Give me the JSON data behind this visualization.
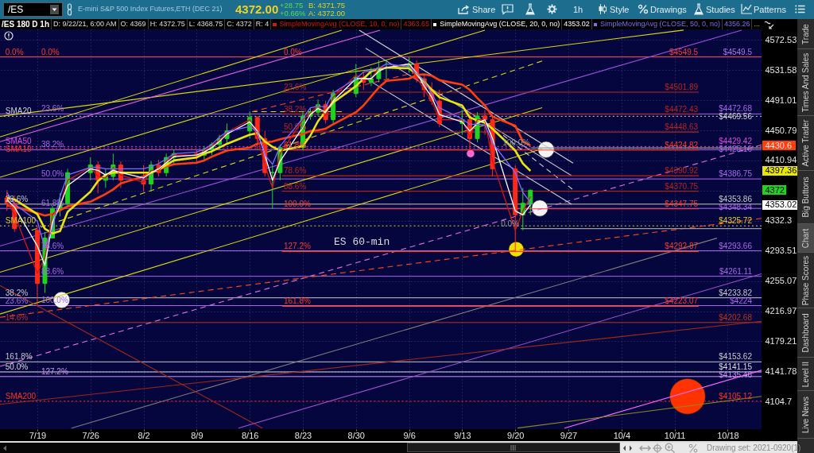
{
  "chart_data": {
    "type": "candlestick",
    "title": "/ES 180 D 1h",
    "log": "y",
    "grid": true,
    "legend": "top",
    "xlim": [
      "2021-07-14T02:00",
      "2021-10-22T11:00"
    ],
    "ylim": [
      4071,
      4587
    ],
    "xticks": [
      {
        "value": "2021-07-19",
        "label": "7/19"
      },
      {
        "value": "2021-07-26",
        "label": "7/26"
      },
      {
        "value": "2021-08-02",
        "label": "8/2"
      },
      {
        "value": "2021-08-09",
        "label": "8/9"
      },
      {
        "value": "2021-08-16",
        "label": "8/16"
      },
      {
        "value": "2021-08-23",
        "label": "8/23"
      },
      {
        "value": "2021-08-30",
        "label": "8/30"
      },
      {
        "value": "2021-09-06",
        "label": "9/6"
      },
      {
        "value": "2021-09-13",
        "label": "9/13"
      },
      {
        "value": "2021-09-20",
        "label": "9/20"
      },
      {
        "value": "2021-09-27",
        "label": "9/27"
      },
      {
        "value": "2021-10-04",
        "label": "10/4"
      },
      {
        "value": "2021-10-11",
        "label": "10/11"
      },
      {
        "value": "2021-10-18",
        "label": "10/18"
      }
    ],
    "yticks": [
      4572.53,
      4531.58,
      4491.01,
      4450.79,
      4430.6,
      4410.94,
      4397.36,
      4372,
      {
        "value": 4371.44,
        "label": null
      },
      4353.02,
      4332.3,
      4293.51,
      4255.07,
      4216.97,
      4179.21,
      4141.78,
      4104.7
    ],
    "x": [
      "2021-07-15",
      "2021-07-16",
      "2021-07-19",
      "2021-07-20",
      "2021-07-21",
      "2021-07-22",
      "2021-07-23",
      "2021-07-26",
      "2021-07-27",
      "2021-07-28",
      "2021-07-29",
      "2021-07-30",
      "2021-08-02",
      "2021-08-03",
      "2021-08-04",
      "2021-08-05",
      "2021-08-06",
      "2021-08-09",
      "2021-08-10",
      "2021-08-11",
      "2021-08-12",
      "2021-08-13",
      "2021-08-16",
      "2021-08-17",
      "2021-08-18",
      "2021-08-19",
      "2021-08-20",
      "2021-08-23",
      "2021-08-24",
      "2021-08-25",
      "2021-08-26",
      "2021-08-27",
      "2021-08-30",
      "2021-08-31",
      "2021-09-01",
      "2021-09-02",
      "2021-09-03",
      "2021-09-06",
      "2021-09-07",
      "2021-09-08",
      "2021-09-09",
      "2021-09-10",
      "2021-09-13",
      "2021-09-14",
      "2021-09-15",
      "2021-09-16",
      "2021-09-17",
      "2021-09-20",
      "2021-09-21",
      "2021-09-22"
    ],
    "ohlc": [
      [
        4362,
        4372,
        4345,
        4355
      ],
      [
        4355,
        4365,
        4318,
        4322
      ],
      [
        4320,
        4325,
        4224,
        4252
      ],
      [
        4252,
        4318,
        4240,
        4310
      ],
      [
        4310,
        4352,
        4310,
        4348
      ],
      [
        4348,
        4368,
        4338,
        4355
      ],
      [
        4355,
        4400,
        4350,
        4395
      ],
      [
        4395,
        4415,
        4385,
        4405
      ],
      [
        4405,
        4410,
        4368,
        4385
      ],
      [
        4385,
        4400,
        4375,
        4390
      ],
      [
        4390,
        4420,
        4385,
        4405
      ],
      [
        4405,
        4410,
        4375,
        4385
      ],
      [
        4385,
        4405,
        4370,
        4380
      ],
      [
        4380,
        4410,
        4370,
        4405
      ],
      [
        4405,
        4412,
        4390,
        4395
      ],
      [
        4395,
        4420,
        4390,
        4415
      ],
      [
        4415,
        4425,
        4405,
        4420
      ],
      [
        4420,
        4425,
        4408,
        4418
      ],
      [
        4418,
        4430,
        4410,
        4425
      ],
      [
        4425,
        4435,
        4418,
        4432
      ],
      [
        4432,
        4445,
        4425,
        4440
      ],
      [
        4440,
        4460,
        4432,
        4450
      ],
      [
        4450,
        4476,
        4440,
        4468
      ],
      [
        4468,
        4470,
        4425,
        4440
      ],
      [
        4440,
        4450,
        4390,
        4395
      ],
      [
        4395,
        4405,
        4347.75,
        4395
      ],
      [
        4395,
        4432,
        4385,
        4428
      ],
      [
        4428,
        4475,
        4425,
        4470
      ],
      [
        4470,
        4480,
        4465,
        4475
      ],
      [
        4475,
        4492,
        4470,
        4485
      ],
      [
        4485,
        4490,
        4460,
        4465
      ],
      [
        4465,
        4505,
        4460,
        4500
      ],
      [
        4500,
        4540,
        4495,
        4522
      ],
      [
        4522,
        4530,
        4505,
        4515
      ],
      [
        4515,
        4535,
        4510,
        4520
      ],
      [
        4520,
        4545,
        4515,
        4535
      ],
      [
        4535,
        4545,
        4520,
        4535
      ],
      [
        4535,
        4549.5,
        4528,
        4540
      ],
      [
        4540,
        4545,
        4515,
        4520
      ],
      [
        4520,
        4525,
        4495,
        4505
      ],
      [
        4505,
        4515,
        4485,
        4490
      ],
      [
        4490,
        4505,
        4455,
        4460
      ],
      [
        4460,
        4478,
        4445,
        4465
      ],
      [
        4465,
        4475,
        4425,
        4440
      ],
      [
        4440,
        4475,
        4435,
        4470
      ],
      [
        4470,
        4478,
        4445,
        4465
      ],
      [
        4465,
        4470,
        4390,
        4400
      ],
      [
        4400,
        4405,
        4293,
        4340
      ],
      [
        4340,
        4375,
        4320,
        4355
      ],
      [
        4355,
        4372.75,
        4340,
        4372
      ]
    ],
    "colors": [
      "#ff2a1a",
      "#ff2a1a",
      "#ff2a1a",
      "#1fd31f",
      "#1fd31f",
      "#1fd31f",
      "#1fd31f",
      "#1fd31f",
      "#ff2a1a",
      "#1fd31f",
      "#1fd31f",
      "#ff2a1a",
      "#ff2a1a",
      "#1fd31f",
      "#ff2a1a",
      "#1fd31f",
      "#1fd31f",
      "#ff2a1a",
      "#1fd31f",
      "#1fd31f",
      "#1fd31f",
      "#1fd31f",
      "#1fd31f",
      "#ff2a1a",
      "#ff2a1a",
      "#1fd31f",
      "#1fd31f",
      "#1fd31f",
      "#1fd31f",
      "#1fd31f",
      "#ff2a1a",
      "#1fd31f",
      "#1fd31f",
      "#ff2a1a",
      "#1fd31f",
      "#1fd31f",
      "#1fd31f",
      "#1fd31f",
      "#ff2a1a",
      "#ff2a1a",
      "#ff2a1a",
      "#ff2a1a",
      "#1fd31f",
      "#ff2a1a",
      "#1fd31f",
      "#ff2a1a",
      "#ff2a1a",
      "#ff2a1a",
      "#1fd31f",
      "#1fd31f"
    ],
    "series": [
      {
        "type": "line",
        "color": "#d8d810",
        "x": [
          "2021-07-14T02:00",
          "2021-08-28T03:00"
        ],
        "values": [
          4442.1,
          4586.0
        ]
      },
      {
        "type": "line",
        "color": "#d8d810",
        "x": [
          "2021-07-14T02:00",
          "2021-10-12T04:30"
        ],
        "values": [
          4469.5,
          4586.0
        ]
      },
      {
        "type": "line",
        "color": "#d8d810",
        "x": [
          "2021-07-14T02:00",
          "2021-09-16T00:00"
        ],
        "values": [
          4388.9,
          4586.0
        ]
      },
      {
        "type": "line",
        "color": "#e060e0",
        "x": [
          "2021-07-14T02:00",
          "2021-09-02T04:00"
        ],
        "values": [
          4435.8,
          4586.0
        ]
      },
      {
        "type": "line",
        "color": "#d8d810",
        "x": [
          "2021-07-14T02:00",
          "2021-09-23T13:00"
        ],
        "values": [
          4266.3,
          4481.1
        ]
      },
      {
        "type": "line",
        "color": "#d8d810",
        "x": [
          "2021-07-14T02:00",
          "2021-09-23T13:00"
        ],
        "values": [
          4213.3,
          4426.4
        ]
      },
      {
        "type": "line",
        "color": "#d8d810",
        "line_style": "dashed",
        "x": [
          "2021-07-18T06:00",
          "2021-09-23T13:00"
        ],
        "values": [
          4320.1,
          4544.0
        ]
      },
      {
        "type": "line",
        "color": "#d8d810",
        "line_style": "dashed",
        "x": [
          "2021-08-16T07:00",
          "2021-08-28T03:00"
        ],
        "values": [
          4475.8,
          4475.8
        ]
      },
      {
        "type": "line",
        "color": "#ff4020",
        "line_style": "dashed",
        "x": [
          "2021-08-16T07:00",
          "2021-09-07T02:00"
        ],
        "values": [
          4475.8,
          4529.0
        ]
      },
      {
        "type": "line",
        "color": "#e070e0",
        "line_style": "dashed",
        "x": [
          "2021-07-14T02:00",
          "2021-10-22T11:00"
        ],
        "values": [
          4148.0,
          4431.6
        ]
      },
      {
        "type": "line",
        "color": "#ff4a1a",
        "line_style": "dashed",
        "x": [
          "2021-07-14T02:00",
          "2021-10-22T11:00"
        ],
        "values": [
          4209.2,
          4335.4
        ]
      },
      {
        "type": "line",
        "color": "#a050d0",
        "x": [
          "2021-08-14T12:00",
          "2021-10-22T11:00"
        ],
        "values": [
          4072.3,
          4264.3
        ]
      },
      {
        "type": "line",
        "color": "#ff66ff",
        "x": [
          "2021-09-26T11:30",
          "2021-10-22T11:00"
        ],
        "values": [
          4072.3,
          4143.2
        ]
      },
      {
        "type": "line",
        "color": "#9a50d8",
        "x": [
          "2021-07-14T02:00",
          "2021-10-19T20:00"
        ],
        "values": [
          4299.8,
          4586.0
        ]
      },
      {
        "type": "line",
        "color": "#cfcfcf",
        "x": [
          "2021-08-30T10:30",
          "2021-09-27T15:00"
        ],
        "values": [
          4586.0,
          4407.6
        ]
      },
      {
        "type": "line",
        "color": "#bdbdbd",
        "x": [
          "2021-08-31T07:00",
          "2021-09-27T10:00"
        ],
        "values": [
          4561.2,
          4391.0
        ]
      },
      {
        "type": "line",
        "color": "#cfcfcf",
        "line_style": "dashed",
        "x": [
          "2021-09-18T10:00",
          "2021-09-27T12:30"
        ],
        "values": [
          4444.2,
          4373.4
        ]
      },
      {
        "type": "line",
        "color": "#cfcfcf",
        "x": [
          "2021-08-31T07:00",
          "2021-09-27T10:00"
        ],
        "values": [
          4520.4,
          4353.8
        ]
      },
      {
        "type": "line",
        "color": "#7c7c7c",
        "x": [
          "2021-07-23T12:00",
          "2021-10-16T14:00"
        ],
        "values": [
          4072.3,
          4309.9
        ]
      },
      {
        "type": "line",
        "color": "#a02818",
        "x": [
          "2021-07-14T02:00",
          "2021-10-22T11:00"
        ],
        "values": [
          4101.3,
          4204.3
        ]
      },
      {
        "type": "line",
        "color": "#8a8a20",
        "x": [
          "2021-09-20T07:00",
          "2021-10-22T11:00"
        ],
        "values": [
          4072.3,
          4111.0
        ]
      },
      {
        "type": "line",
        "color": "#a02818",
        "x": [
          "2021-07-14T02:00",
          "2021-08-17T16:00"
        ],
        "values": [
          4249.3,
          4072.3
        ]
      },
      {
        "type": "line",
        "color": "#9a9a9a",
        "x": [
          "2021-09-22T02:00",
          "2021-10-22T11:00"
        ],
        "values": [
          4427.5,
          4427.5
        ]
      },
      {
        "type": "line",
        "color": "#9a9a9a",
        "x": [
          "2021-09-20T17:00",
          "2021-10-22T11:00"
        ],
        "values": [
          4322.2,
          4322.2
        ]
      },
      {
        "type": "line",
        "color": "#b8241a",
        "x": [
          "2021-08-20T06:30",
          "2021-10-14T04:30"
        ],
        "values": [
          4501.89,
          4501.89
        ]
      },
      {
        "type": "line",
        "color": "#b8241a",
        "x": [
          "2021-08-20T06:30",
          "2021-10-14T04:30"
        ],
        "values": [
          4472.43,
          4472.43
        ]
      },
      {
        "type": "line",
        "color": "#b8241a",
        "x": [
          "2021-08-20T06:30",
          "2021-10-14T04:30"
        ],
        "values": [
          4448.63,
          4448.63
        ]
      },
      {
        "type": "line",
        "color": "#ff3a2a",
        "x": [
          "2021-08-20T06:30",
          "2021-10-14T04:30"
        ],
        "values": [
          4424.82,
          4424.82
        ]
      },
      {
        "type": "line",
        "color": "#b8241a",
        "x": [
          "2021-08-20T06:30",
          "2021-10-14T04:30"
        ],
        "values": [
          4390.92,
          4390.92
        ]
      },
      {
        "type": "line",
        "color": "#b8241a",
        "x": [
          "2021-08-20T06:30",
          "2021-10-14T04:30"
        ],
        "values": [
          4370.75,
          4370.75
        ]
      },
      {
        "type": "line",
        "color": "#ff3a2a",
        "x": [
          "2021-08-20T06:30",
          "2021-10-14T04:30"
        ],
        "values": [
          4347.75,
          4347.75
        ]
      },
      {
        "type": "line",
        "color": "#ff3a2a",
        "x": [
          "2021-08-20T06:30",
          "2021-10-14T04:30"
        ],
        "values": [
          4292.87,
          4292.87
        ]
      },
      {
        "type": "line",
        "color": "#ff3a2a",
        "x": [
          "2021-08-20T06:30",
          "2021-10-14T04:30"
        ],
        "values": [
          4223.07,
          4223.07
        ]
      },
      {
        "type": "line",
        "color": "#ff3d0d",
        "values": [
          4352,
          4351,
          4342,
          4339,
          4341,
          4346,
          4351,
          4357,
          4362,
          4367,
          4373,
          4381,
          4390,
          4395,
          4399,
          4403,
          4406,
          4408,
          4411,
          4416,
          4420,
          4424,
          4428,
          4433,
          4435,
          4436,
          4439,
          4446,
          4450,
          4451,
          4453,
          4459,
          4475,
          4484,
          4496,
          4508,
          4517,
          4520,
          4525,
          4526,
          4524,
          4518,
          4512,
          4505,
          4494,
          4484,
          4469,
          4457,
          4436,
          4430.6
        ]
      },
      {
        "type": "line",
        "color": "#e8e410",
        "values": [
          4362,
          4360,
          4341,
          4322,
          4316,
          4319,
          4344,
          4370,
          4384,
          4392,
          4395,
          4395,
          4395,
          4395,
          4399,
          4405,
          4411,
          4415,
          4420,
          4423,
          4428,
          4433,
          4445,
          4447,
          4436,
          4429,
          4424,
          4430,
          4444,
          4463,
          4476,
          4488,
          4510,
          4520,
          4530,
          4533,
          4535,
          4534,
          4526,
          4516,
          4505,
          4495,
          4484,
          4468,
          4464,
          4461,
          4453,
          4424,
          4407,
          4397.36
        ]
      },
      {
        "type": "line",
        "name": "SimpleMovingAvg (CLOSE, 10, 0, no)",
        "color": "#d81414",
        "values": [
          4358,
          4340,
          4265,
          4285,
          4340,
          4352,
          4385,
          4402,
          4390,
          4388,
          4402,
          4392,
          4382,
          4398,
          4398,
          4410,
          4418,
          4418,
          4424,
          4430,
          4438,
          4448,
          4465,
          4442,
          4405,
          4375,
          4420,
          4465,
          4474,
          4484,
          4470,
          4495,
          4525,
          4518,
          4520,
          4535,
          4535,
          4540,
          4522,
          4505,
          4490,
          4465,
          4465,
          4442,
          4465,
          4465,
          4410,
          4320,
          4345,
          4363.65
        ]
      },
      {
        "type": "line",
        "name": "SimpleMovingAvg (CLOSE, 20, 0, no)",
        "color": "#ffffff",
        "values": [
          4360,
          4350,
          4300,
          4275,
          4330,
          4352,
          4378,
          4400,
          4398,
          4392,
          4398,
          4395,
          4388,
          4395,
          4400,
          4408,
          4416,
          4418,
          4422,
          4428,
          4436,
          4446,
          4462,
          4450,
          4418,
          4385,
          4410,
          4455,
          4472,
          4480,
          4475,
          4490,
          4520,
          4520,
          4520,
          4530,
          4535,
          4540,
          4528,
          4510,
          4495,
          4472,
          4462,
          4450,
          4460,
          4465,
          4440,
          4345,
          4340,
          4353.02
        ]
      },
      {
        "type": "line",
        "name": "SimpleMovingAvg (CLOSE, 50, 0, no)",
        "color": "#7a6cff",
        "values": [
          4369,
          4354,
          4332,
          4297,
          4323,
          4364,
          4392,
          4402,
          4402,
          4400,
          4400,
          4400,
          4400,
          4403,
          4407,
          4413,
          4420,
          4422,
          4426,
          4432,
          4442,
          4449,
          4456,
          4449,
          4418,
          4406,
          4430,
          4467,
          4481,
          4483,
          4482,
          4501,
          4520,
          4529,
          4531,
          4534,
          4540,
          4536,
          4527,
          4517,
          4500,
          4481,
          4466,
          4459,
          4459,
          4458,
          4434,
          4395,
          4369,
          4356.26
        ]
      },
      {
        "type": "bubble",
        "color": "#f4f4f4",
        "x": [
          "2021-07-22T05:00",
          "2021-09-24T01:30",
          "2021-09-23T05:30"
        ],
        "values": [
          4231.1,
          4425.4,
          4348.6
        ],
        "sizes": [
          0.21,
          0.21,
          0.21
        ]
      },
      {
        "type": "bubble",
        "color": "#f0e000",
        "x": [
          "2021-09-20T03:00"
        ],
        "values": [
          4295.6
        ],
        "sizes": [
          0.18
        ]
      },
      {
        "type": "bubble",
        "color": "#ff66dd",
        "x": [
          "2021-09-14T02:30"
        ],
        "values": [
          4420.1
        ],
        "sizes": [
          0.05
        ]
      },
      {
        "type": "bubble",
        "color": "#ff3300",
        "x": [
          "2021-10-12T17:00"
        ],
        "values": [
          4111.0
        ],
        "sizes": [
          1
        ]
      }
    ],
    "ref_lines": [
      {
        "axis": "y",
        "value": 4549.5,
        "label": "$4549.5",
        "color": "#b070f0"
      },
      {
        "axis": "y",
        "value": 4549.5,
        "color": "#ff3a2a"
      },
      {
        "axis": "y",
        "value": 4472.68,
        "label": "$4472.68",
        "color": "#a868e8"
      },
      {
        "axis": "y",
        "value": 4469.56,
        "label": "$4469.56",
        "color": "#d0d0d0",
        "line_style": "dotted"
      },
      {
        "axis": "y",
        "value": 4429.42,
        "label": "$4429.42",
        "color": "#e048e0",
        "line_style": "dotted"
      },
      {
        "axis": "y",
        "value": 4427,
        "color": "#ff3020",
        "line_style": "dotted"
      },
      {
        "axis": "y",
        "value": 4425.16,
        "label": "$4425.16",
        "color": "#a868e8"
      },
      {
        "axis": "y",
        "value": 4386.75,
        "label": "$4386.75",
        "color": "#a868e8"
      },
      {
        "axis": "y",
        "value": 4353.86,
        "label": "$4353.86",
        "color": "#c8c8c8"
      },
      {
        "axis": "y",
        "value": 4348.34,
        "label": "$4348.34",
        "color": "#a868e8"
      },
      {
        "axis": "y",
        "value": 4325.72,
        "label": "$4325.72",
        "color": "#e0d020",
        "line_style": "dotted"
      },
      {
        "axis": "y",
        "value": 4293.66,
        "label": "$4293.66",
        "color": "#a868e8"
      },
      {
        "axis": "y",
        "value": 4261.11,
        "label": "$4261.11",
        "color": "#a868e8"
      },
      {
        "axis": "y",
        "value": 4233.82,
        "label": "$4233.82",
        "color": "#c8c8c8"
      },
      {
        "axis": "y",
        "value": 4224,
        "label": "$4224",
        "color": "#a868e8"
      },
      {
        "axis": "y",
        "value": 4202.68,
        "label": "$4202.68",
        "color": "#c0301c"
      },
      {
        "axis": "y",
        "value": 4153.62,
        "label": "$4153.62",
        "color": "#c8c8c8"
      },
      {
        "axis": "y",
        "value": 4141.15,
        "label": "$4141.15",
        "color": "#dcdcdc"
      },
      {
        "axis": "y",
        "value": 4135.46,
        "label": "$4135.46",
        "color": "#c890f0"
      },
      {
        "axis": "y",
        "value": 4105.12,
        "label": "$4105.12",
        "color": "#ff3020",
        "line_style": "dotted"
      }
    ],
    "annotations": [
      "/ES",
      "E-mini S&P 500 Index Futures,ETH (DEC 21)",
      "4372.00",
      "+28.75",
      "+0.66%",
      "B: 4371.75",
      "A: 4372.00",
      "Share",
      "1h",
      "Style",
      "Drawings",
      "Studies",
      "Patterns",
      "D: 9/22/21, 6:00 AM",
      "O: 4369",
      "H: 4372.75",
      "L: 4368.75",
      "C: 4372",
      "R: 4",
      "4363.65",
      "4353.02",
      "4356.26",
      "...",
      "ES 60-min",
      "Trade",
      "Times And Sales",
      "Active Trader",
      "Big Buttons",
      "Chart",
      "Phase Scores",
      "Dashboard",
      "Level II",
      "Live News",
      "Drawing set: 2021-0920(1)",
      {
        "text": "0.0%",
        "x": "2021-07-14T14:00",
        "y": 4549.5
      },
      {
        "text": "SMA20",
        "x": "2021-07-14T14:00",
        "y": 4469.56
      },
      {
        "text": "SMA50",
        "x": "2021-07-14T14:00",
        "y": 4429.42
      },
      {
        "text": "SMA10",
        "x": "2021-07-14T14:00",
        "y": 4427
      },
      {
        "text": "23.6%",
        "x": "2021-07-14T14:00",
        "y": 4353.86
      },
      {
        "text": "SMA100",
        "x": "2021-07-14T14:00",
        "y": 4325.72
      },
      {
        "text": "38.2%",
        "x": "2021-07-14T14:00",
        "y": 4233.82
      },
      {
        "text": "23.6%",
        "x": "2021-07-14T14:00",
        "y": 4224
      },
      {
        "text": "14.6%",
        "x": "2021-07-14T14:00",
        "y": 4202.68
      },
      {
        "text": "161.8%",
        "x": "2021-07-14T14:00",
        "y": 4153.62
      },
      {
        "text": "50.0%",
        "x": "2021-07-14T14:00",
        "y": 4141.15
      },
      {
        "text": "SMA200",
        "x": "2021-07-14T14:00",
        "y": 4105.12
      },
      {
        "text": "0.0%",
        "x": "2021-07-19T07:30",
        "y": 4549.5
      },
      {
        "text": "23.6%",
        "x": "2021-07-19T07:30",
        "y": 4472.68
      },
      {
        "text": "38.2%",
        "x": "2021-07-19T07:30",
        "y": 4425.16
      },
      {
        "text": "50.0%",
        "x": "2021-07-19T07:30",
        "y": 4386.75
      },
      {
        "text": "61.8%",
        "x": "2021-07-19T07:30",
        "y": 4348.34
      },
      {
        "text": "78.6%",
        "x": "2021-07-19T07:30",
        "y": 4293.66
      },
      {
        "text": "88.6%",
        "x": "2021-07-19T07:30",
        "y": 4261.11
      },
      {
        "text": "100.0%",
        "x": "2021-07-19T07:30",
        "y": 4224
      },
      {
        "text": "127.2%",
        "x": "2021-07-19T07:30",
        "y": 4135.46
      },
      {
        "text": "0.0%",
        "x": "2021-08-20T06:30",
        "y": 4549.5
      },
      {
        "text": "23.6%",
        "x": "2021-08-20T06:30",
        "y": 4501.89
      },
      {
        "text": "38.2%",
        "x": "2021-08-20T06:30",
        "y": 4472.43
      },
      {
        "text": "50.0%",
        "x": "2021-08-20T06:30",
        "y": 4448.63
      },
      {
        "text": "61.8%",
        "x": "2021-08-20T06:30",
        "y": 4424.82
      },
      {
        "text": "78.6%",
        "x": "2021-08-20T06:30",
        "y": 4390.92
      },
      {
        "text": "88.6%",
        "x": "2021-08-20T06:30",
        "y": 4370.75
      },
      {
        "text": "100.0%",
        "x": "2021-08-20T06:30",
        "y": 4347.75
      },
      {
        "text": "127.2%",
        "x": "2021-08-20T06:30",
        "y": 4292.87
      },
      {
        "text": "161.8%",
        "x": "2021-08-20T06:30",
        "y": 4223.07
      },
      {
        "text": "$4549.5",
        "x": "2021-10-14T07:00",
        "y": 4549.5
      },
      {
        "text": "$4501.89",
        "x": "2021-10-14T07:00",
        "y": 4501.89
      },
      {
        "text": "$4472.43",
        "x": "2021-10-14T07:00",
        "y": 4472.43
      },
      {
        "text": "$4448.63",
        "x": "2021-10-14T07:00",
        "y": 4448.63
      },
      {
        "text": "$4424.82",
        "x": "2021-10-14T07:00",
        "y": 4424.82
      },
      {
        "text": "$4390.92",
        "x": "2021-10-14T07:00",
        "y": 4390.92
      },
      {
        "text": "$4370.75",
        "x": "2021-10-14T07:00",
        "y": 4370.75
      },
      {
        "text": "$4347.75",
        "x": "2021-10-14T07:00",
        "y": 4347.75
      },
      {
        "text": "$4292.87",
        "x": "2021-10-14T07:00",
        "y": 4292.87
      },
      {
        "text": "$4223.07",
        "x": "2021-10-14T07:00",
        "y": 4223.07
      },
      {
        "text": "100.0%",
        "x": "2021-09-22T02:00",
        "y": 4427.5
      },
      {
        "text": "0.0%",
        "x": "2021-09-20T17:00",
        "y": 4322.2
      }
    ]
  }
}
